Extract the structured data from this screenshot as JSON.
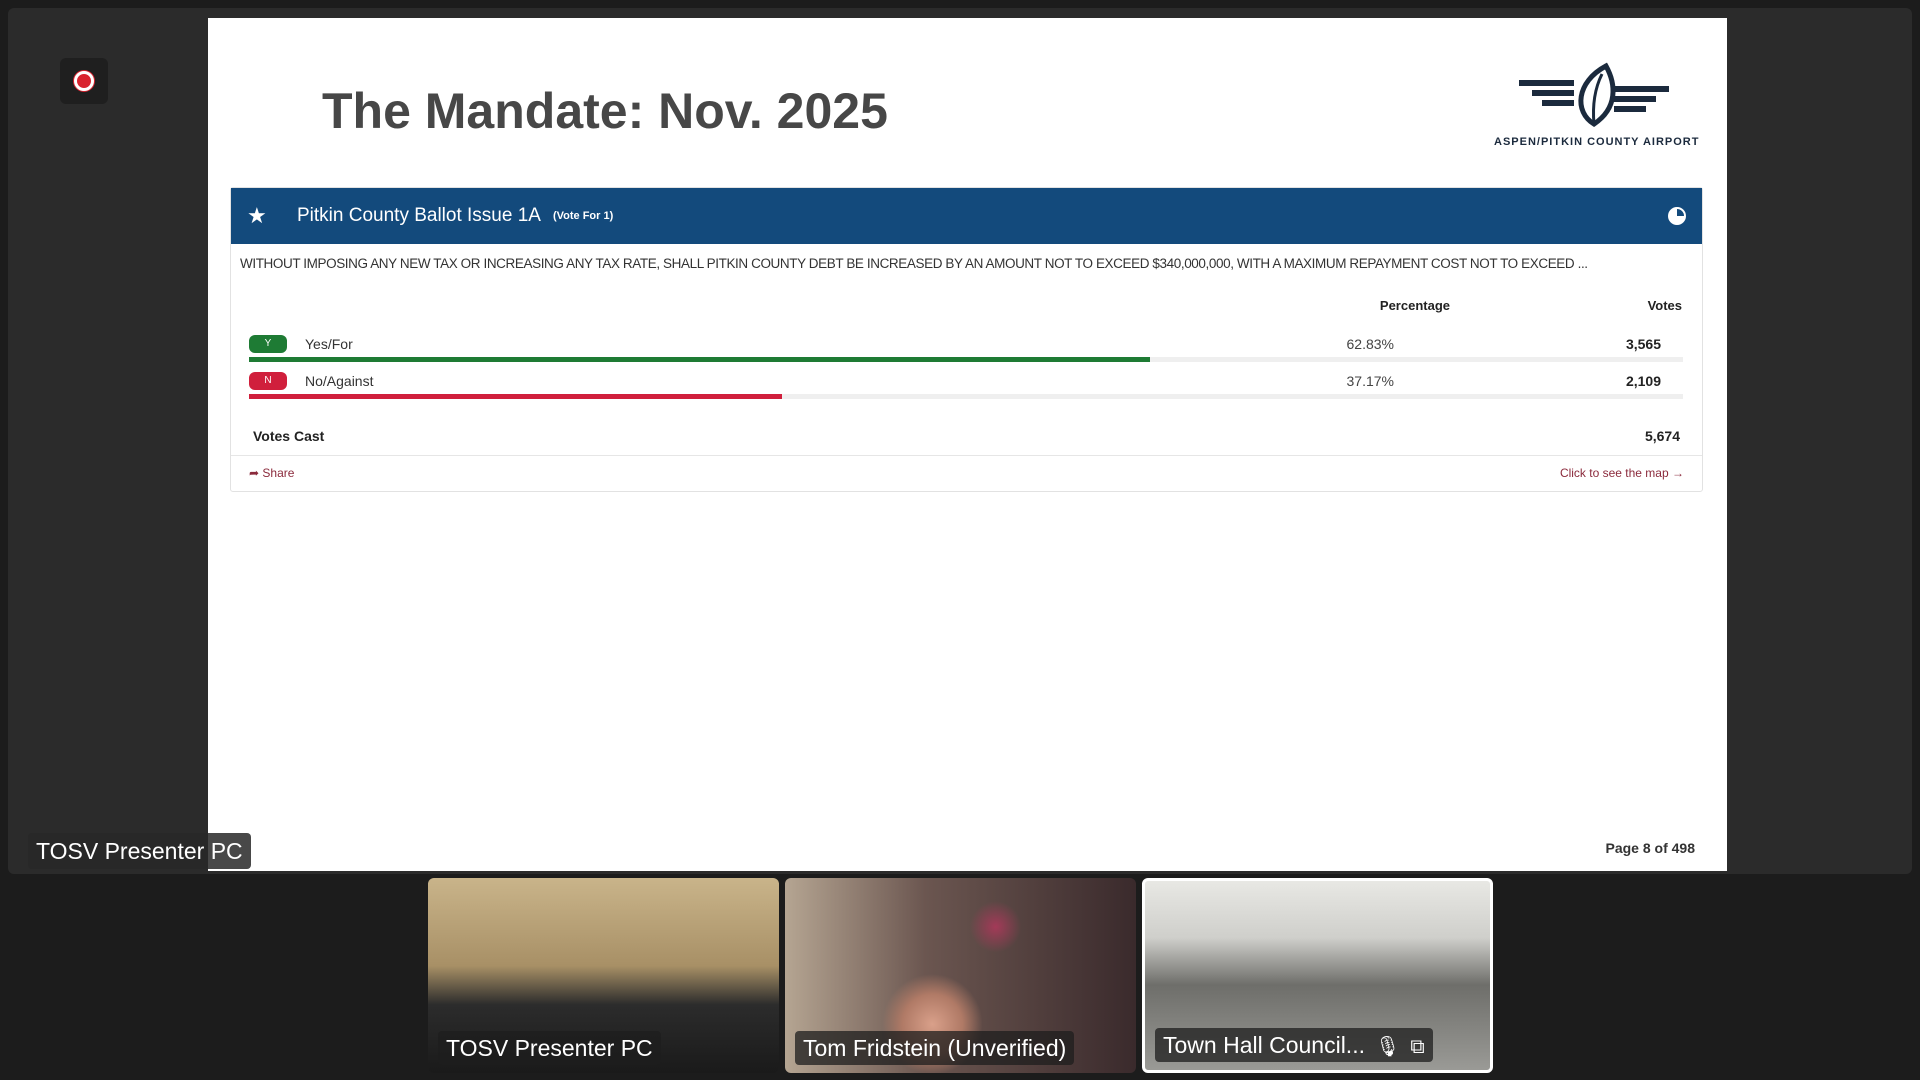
{
  "meeting": {
    "presenter_label": "TOSV Presenter PC",
    "recording": true
  },
  "slide": {
    "title": "The Mandate: Nov. 2025",
    "logo_text": "ASPEN/PITKIN COUNTY AIRPORT",
    "page": "Page 8 of 498"
  },
  "ballot": {
    "title": "Pitkin County Ballot Issue 1A",
    "vote_for": "(Vote For 1)",
    "description": "WITHOUT IMPOSING ANY NEW TAX OR INCREASING ANY TAX RATE, SHALL PITKIN COUNTY DEBT BE INCREASED BY AN AMOUNT NOT TO EXCEED $340,000,000, WITH A MAXIMUM REPAYMENT COST NOT TO EXCEED ...",
    "col_percentage": "Percentage",
    "col_votes": "Votes",
    "rows": [
      {
        "badge": "Y",
        "label": "Yes/For",
        "percentage": "62.83%",
        "votes": "3,565",
        "share": 62.83,
        "color": "#1e7b34"
      },
      {
        "badge": "N",
        "label": "No/Against",
        "percentage": "37.17%",
        "votes": "2,109",
        "share": 37.17,
        "color": "#d01f3c"
      }
    ],
    "votes_cast_label": "Votes Cast",
    "votes_cast": "5,674",
    "share_label": "Share",
    "map_label": "Click to see the map",
    "header_color": "#134a7c"
  },
  "tiles": [
    {
      "name": "TOSV Presenter PC"
    },
    {
      "name": "Tom Fridstein (Unverified)"
    },
    {
      "name": "Town Hall Council...",
      "selected": true
    }
  ]
}
